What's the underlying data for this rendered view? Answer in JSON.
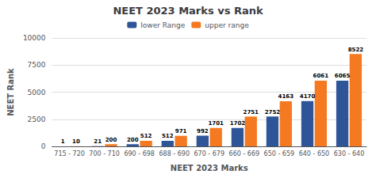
{
  "chart_data": {
    "type": "bar",
    "title": "NEET 2023 Marks vs Rank",
    "x_label": "NEET 2023 Marks",
    "y_label": "NEET Rank",
    "categories": [
      "715 - 720",
      "700 - 710",
      "690 - 698",
      "688 - 690",
      "670 - 679",
      "660 - 669",
      "650 - 659",
      "640 - 650",
      "630 - 640"
    ],
    "series": [
      {
        "name": "lower Range",
        "color": "#2e5597",
        "values": [
          1,
          21,
          200,
          512,
          992,
          1702,
          2752,
          4170,
          6065
        ]
      },
      {
        "name": "upper range",
        "color": "#f47920",
        "values": [
          10,
          200,
          512,
          971,
          1701,
          2751,
          4163,
          6061,
          8522
        ]
      }
    ],
    "ylim": [
      0,
      10000
    ],
    "yticks": [
      0,
      2500,
      5000,
      7500,
      10000
    ],
    "grid": true,
    "legend": "top",
    "data_labels": true
  }
}
